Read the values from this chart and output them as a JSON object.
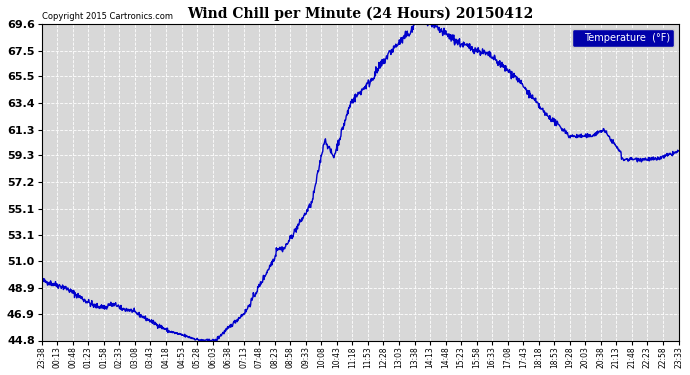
{
  "title": "Wind Chill per Minute (24 Hours) 20150412",
  "copyright_text": "Copyright 2015 Cartronics.com",
  "legend_label": "Temperature  (°F)",
  "line_color": "#0000cc",
  "background_color": "#ffffff",
  "plot_bg_color": "#d8d8d8",
  "grid_color": "#ffffff",
  "yticks": [
    44.8,
    46.9,
    48.9,
    51.0,
    53.1,
    55.1,
    57.2,
    59.3,
    61.3,
    63.4,
    65.5,
    67.5,
    69.6
  ],
  "xtick_labels": [
    "23:38",
    "00:13",
    "00:48",
    "01:23",
    "01:58",
    "02:33",
    "03:08",
    "03:43",
    "04:18",
    "04:53",
    "05:28",
    "06:03",
    "06:38",
    "07:13",
    "07:48",
    "08:23",
    "08:58",
    "09:33",
    "10:08",
    "10:43",
    "11:18",
    "11:53",
    "12:28",
    "13:03",
    "13:38",
    "14:13",
    "14:48",
    "15:23",
    "15:58",
    "16:33",
    "17:08",
    "17:43",
    "18:18",
    "18:53",
    "19:28",
    "20:03",
    "20:38",
    "21:13",
    "21:48",
    "22:23",
    "22:58",
    "23:33"
  ],
  "ymin": 44.8,
  "ymax": 69.6,
  "line_width": 1.0,
  "legend_bg": "#0000aa",
  "legend_text_color": "#ffffff"
}
